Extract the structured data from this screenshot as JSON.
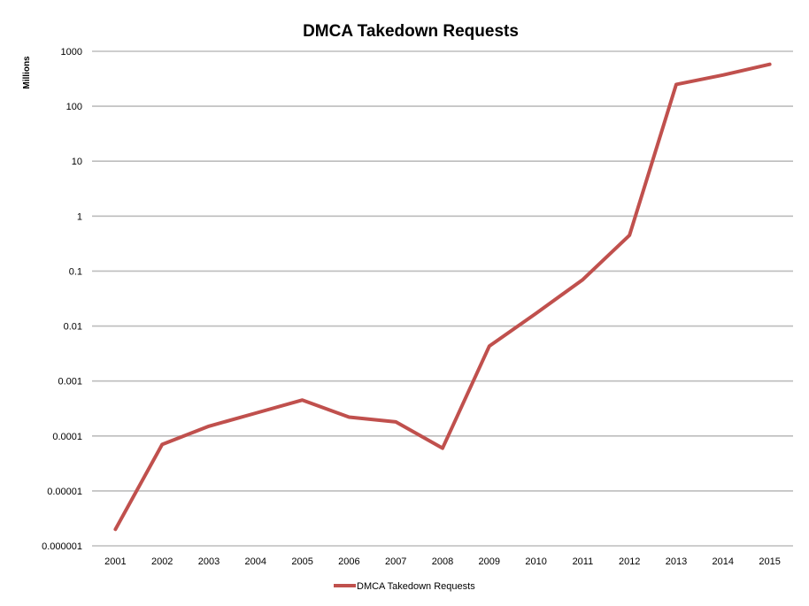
{
  "chart_data": {
    "type": "line",
    "title": "DMCA Takedown Requests",
    "xlabel": "",
    "ylabel": "Millions",
    "y_scale": "log",
    "ylim": [
      1e-06,
      1000
    ],
    "y_ticks": [
      "1000",
      "100",
      "10",
      "1",
      "0.1",
      "0.01",
      "0.001",
      "0.0001",
      "0.00001",
      "0.000001"
    ],
    "grid": true,
    "legend_position": "bottom",
    "categories": [
      "2001",
      "2002",
      "2003",
      "2004",
      "2005",
      "2006",
      "2007",
      "2008",
      "2009",
      "2010",
      "2011",
      "2012",
      "2013",
      "2014",
      "2015"
    ],
    "series": [
      {
        "name": "DMCA Takedown Requests",
        "color": "#c0504d",
        "values": [
          2e-06,
          7e-05,
          0.00015,
          0.00026,
          0.00045,
          0.00022,
          0.00018,
          6e-05,
          0.0043,
          0.017,
          0.07,
          0.45,
          250,
          370,
          580
        ]
      }
    ]
  }
}
